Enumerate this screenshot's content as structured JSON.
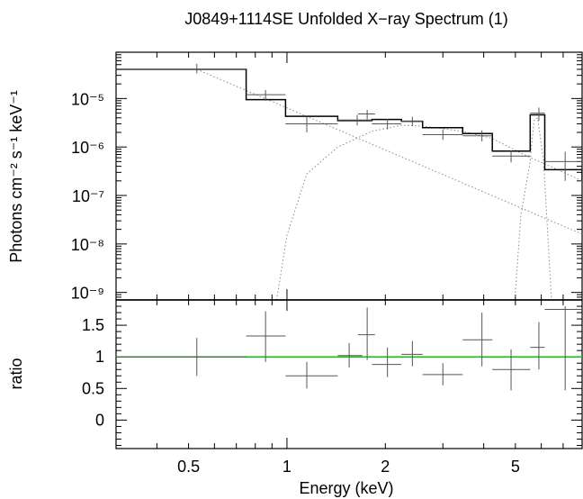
{
  "chart_data": [
    {
      "type": "line",
      "title": "J0849+1114SE Unfolded X−ray Spectrum (1)",
      "ylabel": "Photons cm⁻² s⁻¹ keV⁻¹",
      "xscale": "log",
      "yscale": "log",
      "xlim": [
        0.3,
        8
      ],
      "ylim": [
        7e-10,
        9e-05
      ],
      "ytick_labels": [
        "10⁻⁹",
        "10⁻⁸",
        "10⁻⁷",
        "10⁻⁶",
        "10⁻⁵"
      ],
      "yticks": [
        1e-09,
        1e-08,
        1e-07,
        1e-06,
        1e-05
      ],
      "data_points": [
        {
          "x": 0.53,
          "xlo": 0.3,
          "xhi": 0.75,
          "y": 4e-05,
          "ylo": 3.3e-05,
          "yhi": 5.2e-05
        },
        {
          "x": 0.86,
          "xlo": 0.75,
          "xhi": 0.99,
          "y": 1.2e-05,
          "ylo": 9e-06,
          "yhi": 1.5e-05
        },
        {
          "x": 1.15,
          "xlo": 0.99,
          "xhi": 1.43,
          "y": 3e-06,
          "ylo": 2e-06,
          "yhi": 4.5e-06
        },
        {
          "x": 1.64,
          "xlo": 1.43,
          "xhi": 1.82,
          "y": 3.6e-06,
          "ylo": 2.8e-06,
          "yhi": 4.6e-06
        },
        {
          "x": 1.76,
          "xlo": 1.65,
          "xhi": 1.86,
          "y": 4.8e-06,
          "ylo": 3.7e-06,
          "yhi": 5.8e-06
        },
        {
          "x": 2.03,
          "xlo": 1.82,
          "xhi": 2.24,
          "y": 3e-06,
          "ylo": 2.3e-06,
          "yhi": 3.8e-06
        },
        {
          "x": 2.42,
          "xlo": 2.24,
          "xhi": 2.6,
          "y": 3.4e-06,
          "ylo": 2.7e-06,
          "yhi": 4.2e-06
        },
        {
          "x": 3.0,
          "xlo": 2.6,
          "xhi": 3.45,
          "y": 1.8e-06,
          "ylo": 1.4e-06,
          "yhi": 2.3e-06
        },
        {
          "x": 3.95,
          "xlo": 3.45,
          "xhi": 4.25,
          "y": 1.7e-06,
          "ylo": 1.3e-06,
          "yhi": 2.2e-06
        },
        {
          "x": 4.85,
          "xlo": 4.25,
          "xhi": 5.55,
          "y": 6.5e-07,
          "ylo": 4.8e-07,
          "yhi": 8.5e-07
        },
        {
          "x": 5.9,
          "xlo": 5.55,
          "xhi": 6.15,
          "y": 5e-06,
          "ylo": 3.5e-06,
          "yhi": 6.5e-06
        },
        {
          "x": 7.1,
          "xlo": 6.15,
          "xhi": 8.0,
          "y": 5e-07,
          "ylo": 2e-07,
          "yhi": 8e-07
        }
      ],
      "model_total": [
        [
          0.3,
          4e-05
        ],
        [
          0.75,
          4e-05
        ],
        [
          0.75,
          9.5e-06
        ],
        [
          0.99,
          9.5e-06
        ],
        [
          0.99,
          4.3e-06
        ],
        [
          1.43,
          4.3e-06
        ],
        [
          1.43,
          3.5e-06
        ],
        [
          1.82,
          3.5e-06
        ],
        [
          1.82,
          3.7e-06
        ],
        [
          2.24,
          3.7e-06
        ],
        [
          2.24,
          3.4e-06
        ],
        [
          2.6,
          3.4e-06
        ],
        [
          2.6,
          2.5e-06
        ],
        [
          3.45,
          2.5e-06
        ],
        [
          3.45,
          1.9e-06
        ],
        [
          4.25,
          1.9e-06
        ],
        [
          4.25,
          8.2e-07
        ],
        [
          5.55,
          8.2e-07
        ],
        [
          5.55,
          4.6e-06
        ],
        [
          6.15,
          4.6e-06
        ],
        [
          6.15,
          3.4e-07
        ],
        [
          8.0,
          3.4e-07
        ],
        [
          8.0,
          2.1e-07
        ]
      ],
      "model_powerlaw": [
        [
          0.53,
          4e-05
        ],
        [
          8.0,
          1.6e-08
        ]
      ],
      "model_absorbed": [
        [
          0.93,
          7e-10
        ],
        [
          1.0,
          1.5e-08
        ],
        [
          1.15,
          2.8e-07
        ],
        [
          1.43,
          1e-06
        ],
        [
          1.82,
          2.1e-06
        ],
        [
          2.24,
          2.8e-06
        ],
        [
          2.6,
          2.7e-06
        ],
        [
          3.45,
          2.1e-06
        ],
        [
          4.25,
          1.5e-06
        ],
        [
          5.55,
          6e-07
        ],
        [
          6.15,
          4.5e-07
        ],
        [
          8.0,
          2e-07
        ]
      ],
      "model_line": [
        [
          4.98,
          7e-10
        ],
        [
          5.2,
          4e-08
        ],
        [
          5.55,
          5e-07
        ],
        [
          5.7,
          3.5e-06
        ],
        [
          5.85,
          4e-06
        ],
        [
          6.1,
          5e-07
        ],
        [
          6.45,
          7e-10
        ]
      ]
    },
    {
      "type": "line",
      "xlabel": "Energy (keV)",
      "ylabel": "ratio",
      "xscale": "log",
      "xlim": [
        0.3,
        8
      ],
      "ylim": [
        -0.45,
        1.9
      ],
      "xtick_labels": [
        "0.5",
        "1",
        "2",
        "5"
      ],
      "xticks": [
        0.5,
        1,
        2,
        5
      ],
      "ytick_labels": [
        "0",
        "0.5",
        "1",
        "1.5"
      ],
      "yticks": [
        0,
        0.5,
        1,
        1.5
      ],
      "reference_line": 1,
      "reference_color": "#00cc00",
      "data_points": [
        {
          "x": 0.53,
          "xlo": 0.3,
          "xhi": 0.75,
          "y": 1.0,
          "ylo": 0.7,
          "yhi": 1.3
        },
        {
          "x": 0.86,
          "xlo": 0.75,
          "xhi": 0.99,
          "y": 1.33,
          "ylo": 0.92,
          "yhi": 1.72
        },
        {
          "x": 1.15,
          "xlo": 0.99,
          "xhi": 1.43,
          "y": 0.7,
          "ylo": 0.5,
          "yhi": 0.92
        },
        {
          "x": 1.55,
          "xlo": 1.43,
          "xhi": 1.7,
          "y": 1.02,
          "ylo": 0.83,
          "yhi": 1.22
        },
        {
          "x": 1.76,
          "xlo": 1.65,
          "xhi": 1.86,
          "y": 1.35,
          "ylo": 0.95,
          "yhi": 1.78
        },
        {
          "x": 2.03,
          "xlo": 1.82,
          "xhi": 2.24,
          "y": 0.88,
          "ylo": 0.68,
          "yhi": 1.15
        },
        {
          "x": 2.42,
          "xlo": 2.24,
          "xhi": 2.6,
          "y": 1.04,
          "ylo": 0.85,
          "yhi": 1.25
        },
        {
          "x": 3.0,
          "xlo": 2.6,
          "xhi": 3.45,
          "y": 0.72,
          "ylo": 0.55,
          "yhi": 0.9
        },
        {
          "x": 3.95,
          "xlo": 3.45,
          "xhi": 4.25,
          "y": 1.27,
          "ylo": 0.85,
          "yhi": 1.7
        },
        {
          "x": 4.85,
          "xlo": 4.25,
          "xhi": 5.55,
          "y": 0.8,
          "ylo": 0.47,
          "yhi": 1.12
        },
        {
          "x": 5.9,
          "xlo": 5.55,
          "xhi": 6.15,
          "y": 1.15,
          "ylo": 0.8,
          "yhi": 1.55
        },
        {
          "x": 7.1,
          "xlo": 6.15,
          "xhi": 8.0,
          "y": 1.75,
          "ylo": 0.47,
          "yhi": 1.8
        }
      ]
    }
  ]
}
